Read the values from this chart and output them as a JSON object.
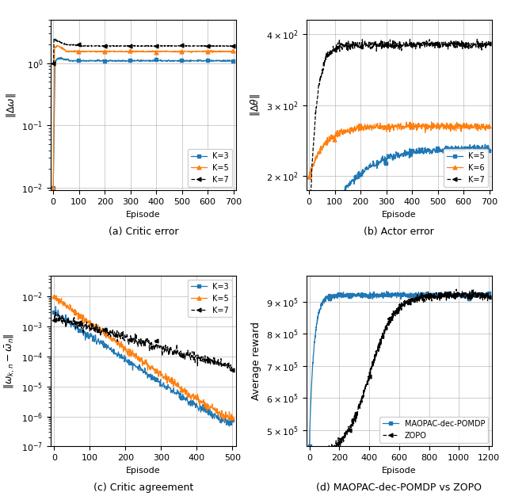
{
  "fig_size": [
    6.4,
    6.26
  ],
  "dpi": 100,
  "colors": {
    "blue": "#1f77b4",
    "orange": "#ff7f0e",
    "black": "#000000"
  },
  "subplot_a": {
    "title": "(a) Critic error",
    "xlabel": "Episode",
    "ylabel": "$\\|\\Delta\\omega\\|$",
    "xlim": [
      -10,
      710
    ],
    "xticks": [
      0,
      100,
      200,
      300,
      400,
      500,
      600,
      700
    ],
    "ylim": [
      0.009,
      5.0
    ],
    "legend": [
      "K=3",
      "K=5",
      "K=7"
    ]
  },
  "subplot_b": {
    "title": "(b) Actor error",
    "xlabel": "Episode",
    "ylabel": "$\\|\\Delta\\theta\\|$",
    "xlim": [
      -10,
      710
    ],
    "xticks": [
      0,
      100,
      200,
      300,
      400,
      500,
      600,
      700
    ],
    "ylim": [
      180,
      420
    ],
    "yticks": [
      200,
      300,
      400
    ],
    "yticklabels": [
      "$2\\times10^2$",
      "$3\\times10^2$",
      "$4\\times10^2$"
    ],
    "legend": [
      "K=5",
      "K=6",
      "K=7"
    ]
  },
  "subplot_c": {
    "title": "(c) Critic agreement",
    "xlabel": "Episode",
    "ylabel": "$\\|\\omega_{k,n} - \\bar{\\omega}_n\\|$",
    "xlim": [
      -10,
      510
    ],
    "xticks": [
      0,
      100,
      200,
      300,
      400,
      500
    ],
    "ylim": [
      1e-07,
      0.05
    ],
    "legend": [
      "K=3",
      "K=5",
      "K=7"
    ]
  },
  "subplot_d": {
    "title": "(d) MAOPAC-dec-POMDP vs ZOPO",
    "xlabel": "Episode",
    "ylabel": "Average reward",
    "xlim": [
      -20,
      1220
    ],
    "xticks": [
      0,
      200,
      400,
      600,
      800,
      1000,
      1200
    ],
    "ylim": [
      450000.0,
      980000.0
    ],
    "yticks": [
      500000.0,
      600000.0,
      700000.0,
      800000.0,
      900000.0
    ],
    "yticklabels": [
      "$5\\times10^5$",
      "$6\\times10^5$",
      "$7\\times10^5$",
      "$8\\times10^5$",
      "$9\\times10^5$"
    ],
    "legend": [
      "MAOPAC-dec-POMDP",
      "ZOPO"
    ]
  }
}
